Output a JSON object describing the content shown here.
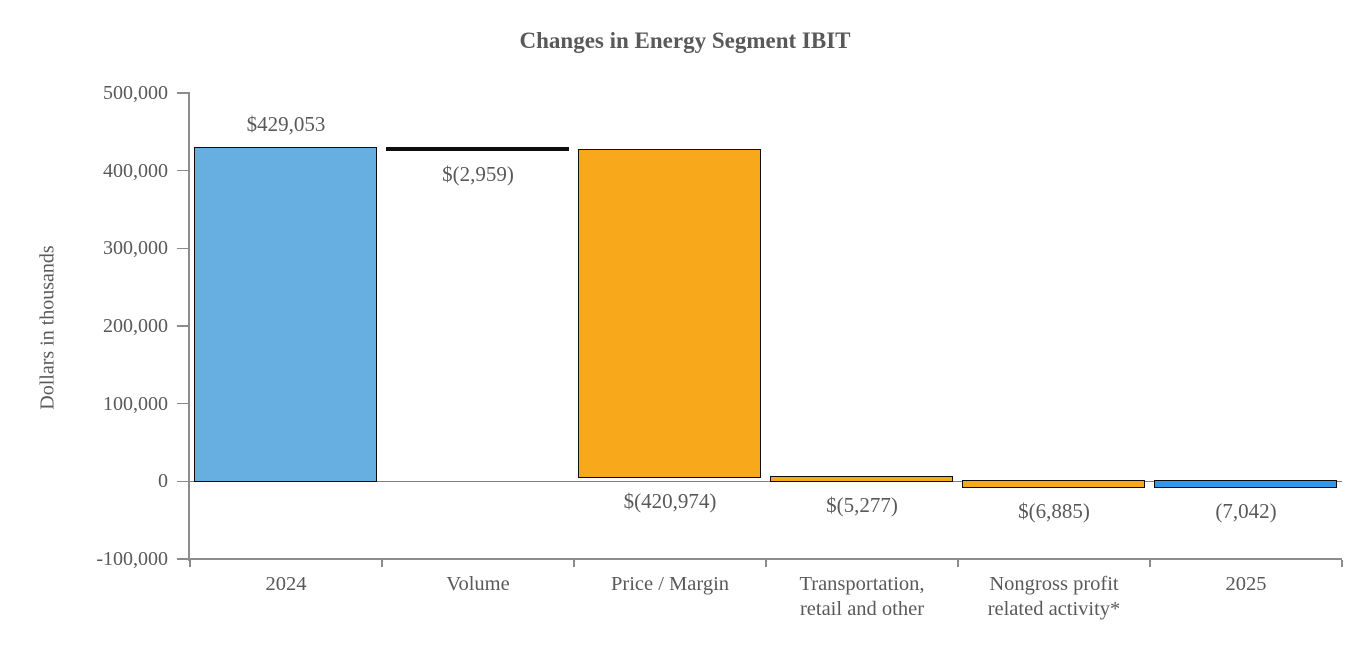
{
  "title": "Changes in Energy Segment IBIT",
  "y_axis": {
    "label": "Dollars in thousands",
    "tick_labels": [
      "500,000",
      "400,000",
      "300,000",
      "200,000",
      "100,000",
      "0",
      "-100,000"
    ],
    "tick_values": [
      500000,
      400000,
      300000,
      200000,
      100000,
      0,
      -100000
    ]
  },
  "colors": {
    "blue_2024": "#68AFE1",
    "black_connector": "#0d0d0d",
    "orange": "#F7A81B",
    "blue_2025": "#3498E8",
    "axis": "#8C8C8C",
    "text": "#595959"
  },
  "chart_data": {
    "type": "bar",
    "subtype": "waterfall",
    "title": "Changes in Energy Segment IBIT",
    "xlabel": "",
    "ylabel": "Dollars in thousands",
    "ylim": [
      -100000,
      500000
    ],
    "grid": false,
    "legend": false,
    "categories": [
      "2024",
      "Volume",
      "Price / Margin",
      "Transportation, retail and other",
      "Nongross profit related activity*",
      "2025"
    ],
    "bars": [
      {
        "category_lines": [
          "2024"
        ],
        "start": 0,
        "end": 429053,
        "value": 429053,
        "label": "$429,053",
        "label_position": "above",
        "color_key": "blue_2024"
      },
      {
        "category_lines": [
          "Volume"
        ],
        "start": 429053,
        "end": 426094,
        "value": -2959,
        "label": "$(2,959)",
        "label_position": "below",
        "color_key": "black_connector"
      },
      {
        "category_lines": [
          "Price / Margin"
        ],
        "start": 426094,
        "end": 5120,
        "value": -420974,
        "label": "$(420,974)",
        "label_position": "below",
        "color_key": "orange"
      },
      {
        "category_lines": [
          "Transportation,",
          "retail and other"
        ],
        "start": 5120,
        "end": -157,
        "value": -5277,
        "label": "$(5,277)",
        "label_position": "below",
        "color_key": "orange"
      },
      {
        "category_lines": [
          "Nongross profit",
          "related activity*"
        ],
        "start": -157,
        "end": -7042,
        "value": -6885,
        "label": "$(6,885)",
        "label_position": "below",
        "color_key": "orange"
      },
      {
        "category_lines": [
          "2025"
        ],
        "start": 0,
        "end": -7042,
        "value": -7042,
        "label": "(7,042)",
        "label_position": "below",
        "color_key": "blue_2025"
      }
    ]
  }
}
